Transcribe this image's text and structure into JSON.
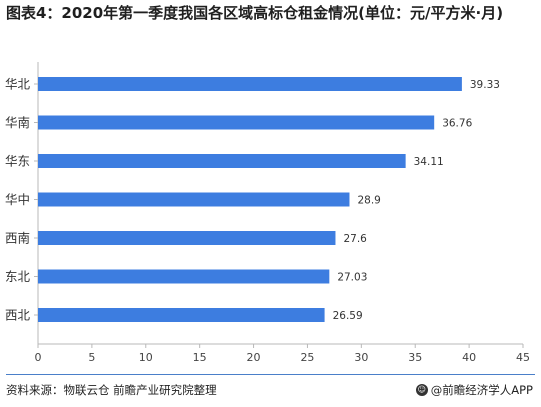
{
  "title": "图表4：2020年第一季度我国各区域高标仓租金情况(单位：元/平方米·月)",
  "footer": {
    "source": "资料来源：物联云仓 前瞻产业研究院整理",
    "brand": "@前瞻经济学人APP",
    "brand_icon": "smile-logo-icon"
  },
  "colors": {
    "bar": "#3d7de0",
    "axis": "#b8b8b8",
    "title": "#1f1f1f"
  },
  "chart_data": {
    "type": "bar",
    "orientation": "horizontal",
    "title": "图表4：2020年第一季度我国各区域高标仓租金情况(单位：元/平方米·月)",
    "categories": [
      "华北",
      "华南",
      "华东",
      "华中",
      "西南",
      "东北",
      "西北"
    ],
    "values": [
      39.33,
      36.76,
      34.11,
      28.9,
      27.6,
      27.03,
      26.59
    ],
    "value_labels": [
      "39.33",
      "36.76",
      "34.11",
      "28.9",
      "27.6",
      "27.03",
      "26.59"
    ],
    "xticks": [
      0,
      5,
      10,
      15,
      20,
      25,
      30,
      35,
      40,
      45
    ],
    "xlim": [
      0,
      45
    ],
    "xlabel": "",
    "ylabel": "",
    "grid": false,
    "legend": "none"
  }
}
